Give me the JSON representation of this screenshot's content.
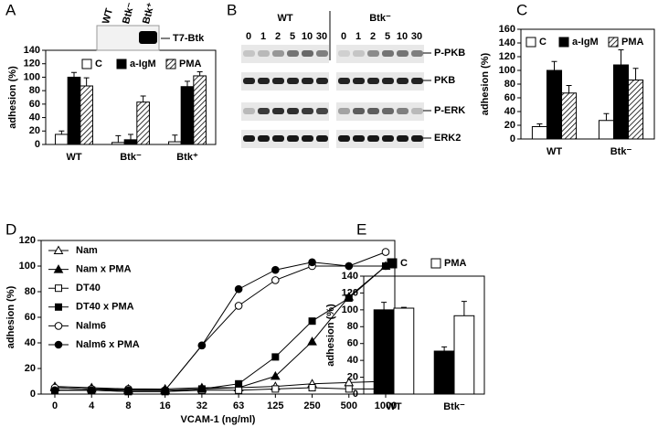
{
  "chart_data": [
    {
      "type": "bar",
      "panel": "A",
      "ylabel": "adhesion (%)",
      "categories": [
        "WT",
        "Btk⁻",
        "Btk⁺"
      ],
      "series": [
        {
          "name": "C",
          "color": "#ffffff",
          "hatch": false,
          "values": [
            15,
            3,
            4
          ],
          "errors": [
            5,
            10,
            10
          ]
        },
        {
          "name": "a-IgM",
          "color": "#000000",
          "hatch": false,
          "values": [
            100,
            7,
            86
          ],
          "errors": [
            7,
            8,
            8
          ]
        },
        {
          "name": "PMA",
          "color": "#ffffff",
          "hatch": true,
          "values": [
            87,
            63,
            102
          ],
          "errors": [
            12,
            9,
            6
          ]
        }
      ],
      "ylim": [
        0,
        140
      ],
      "yticks": [
        0,
        20,
        40,
        60,
        80,
        100,
        120,
        140
      ]
    },
    {
      "type": "bar",
      "panel": "C",
      "ylabel": "adhesion (%)",
      "categories": [
        "WT",
        "Btk⁻"
      ],
      "series": [
        {
          "name": "C",
          "color": "#ffffff",
          "hatch": false,
          "values": [
            18,
            27
          ],
          "errors": [
            4,
            10
          ]
        },
        {
          "name": "a-IgM",
          "color": "#000000",
          "hatch": false,
          "values": [
            100,
            108
          ],
          "errors": [
            13,
            22
          ]
        },
        {
          "name": "PMA",
          "color": "#ffffff",
          "hatch": true,
          "values": [
            67,
            86
          ],
          "errors": [
            11,
            17
          ]
        }
      ],
      "ylim": [
        0,
        160
      ],
      "yticks": [
        0,
        20,
        40,
        60,
        80,
        100,
        120,
        140,
        160
      ]
    },
    {
      "type": "line",
      "panel": "D",
      "ylabel": "adhesion (%)",
      "xlabel": "VCAM-1 (ng/ml)",
      "categories": [
        "0",
        "4",
        "8",
        "16",
        "32",
        "63",
        "125",
        "250",
        "500",
        "1000"
      ],
      "series": [
        {
          "name": "Nam",
          "color": "#000000",
          "marker": "triangle",
          "filled": false,
          "values": [
            6,
            5,
            4,
            4,
            5,
            5,
            6,
            8,
            9,
            10
          ]
        },
        {
          "name": "Nam x PMA",
          "color": "#000000",
          "marker": "triangle",
          "filled": true,
          "values": [
            5,
            4,
            3,
            3,
            4,
            5,
            14,
            41,
            76,
            100
          ]
        },
        {
          "name": "DT40",
          "color": "#000000",
          "marker": "square",
          "filled": false,
          "values": [
            3,
            3,
            2,
            2,
            3,
            3,
            4,
            5,
            4,
            4
          ]
        },
        {
          "name": "DT40 x PMA",
          "color": "#000000",
          "marker": "square",
          "filled": true,
          "values": [
            3,
            3,
            2,
            2,
            4,
            8,
            29,
            57,
            75,
            100
          ]
        },
        {
          "name": "Nalm6",
          "color": "#000000",
          "marker": "circle",
          "filled": false,
          "values": [
            5,
            4,
            4,
            3,
            38,
            69,
            89,
            100,
            100,
            111
          ]
        },
        {
          "name": "Nalm6 x PMA",
          "color": "#000000",
          "marker": "circle",
          "filled": true,
          "values": [
            3,
            3,
            3,
            3,
            38,
            82,
            97,
            103,
            100,
            100
          ]
        }
      ],
      "ylim": [
        0,
        120
      ],
      "yticks": [
        0,
        20,
        40,
        60,
        80,
        100,
        120
      ]
    },
    {
      "type": "bar",
      "panel": "E",
      "ylabel": "adhesion (%)",
      "categories": [
        "WT",
        "Btk⁻"
      ],
      "series": [
        {
          "name": "C",
          "color": "#000000",
          "hatch": false,
          "values": [
            100,
            51
          ],
          "errors": [
            9,
            5
          ]
        },
        {
          "name": "PMA",
          "color": "#ffffff",
          "hatch": false,
          "values": [
            102,
            93
          ],
          "errors": [
            1,
            17
          ]
        }
      ],
      "ylim": [
        0,
        140
      ],
      "yticks": [
        0,
        20,
        40,
        60,
        80,
        100,
        120,
        140
      ]
    }
  ],
  "inset_blot": {
    "lanes": [
      "WT",
      "Btk⁻",
      "Btk⁺"
    ],
    "label": "T7-Btk"
  },
  "blots": {
    "panel": "B",
    "groups": [
      {
        "name": "WT",
        "times": [
          0,
          1,
          2,
          5,
          10,
          30
        ]
      },
      {
        "name": "Btk⁻",
        "times": [
          0,
          1,
          2,
          5,
          10,
          30
        ]
      }
    ],
    "rows": [
      "P-PKB",
      "PKB",
      "P-ERK",
      "ERK2"
    ]
  }
}
